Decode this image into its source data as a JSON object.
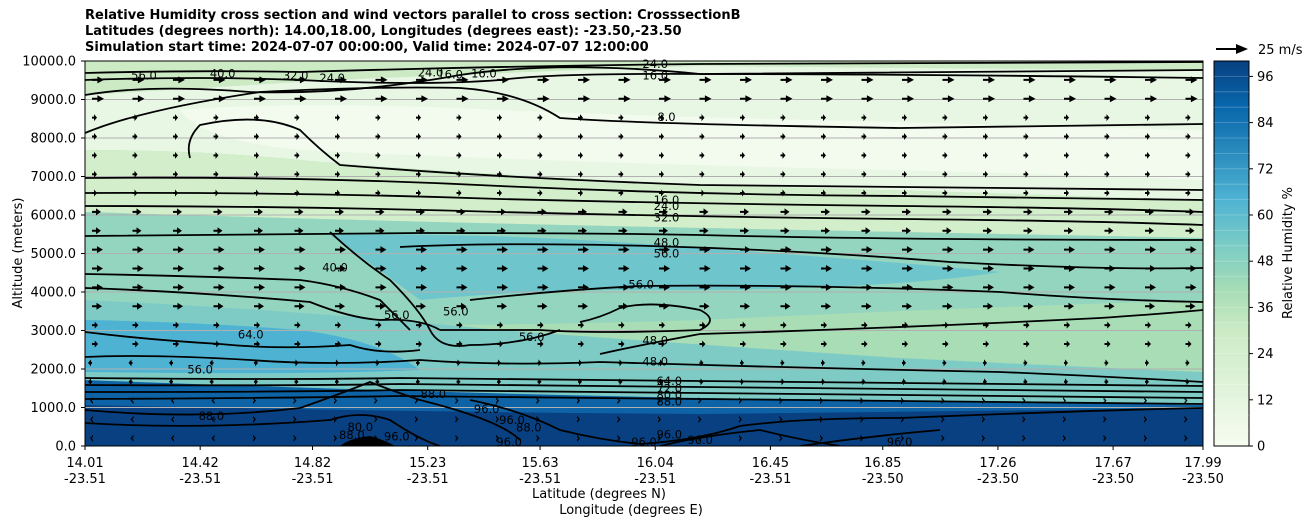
{
  "chart_data": {
    "type": "contour",
    "title_lines": [
      "Relative Humidity cross section and wind vectors parallel to cross section: CrosssectionB",
      "Latitudes (degrees north): 14.00,18.00, Longitudes (degrees east): -23.50,-23.50",
      "Simulation start time: 2024-07-07 00:00:00, Valid time: 2024-07-07 12:00:00"
    ],
    "ylabel": "Altitude (meters)",
    "xlabel_lat": "Latitude (degrees N)",
    "xlabel_lon": "Longitude (degrees E)",
    "ylim": [
      0,
      10000
    ],
    "yticks": [
      "0.0",
      "1000.0",
      "2000.0",
      "3000.0",
      "4000.0",
      "5000.0",
      "6000.0",
      "7000.0",
      "8000.0",
      "9000.0",
      "10000.0"
    ],
    "ytick_values": [
      0,
      1000,
      2000,
      3000,
      4000,
      5000,
      6000,
      7000,
      8000,
      9000,
      10000
    ],
    "xlim": [
      14.01,
      17.99
    ],
    "xtick_lat": [
      "14.01",
      "14.42",
      "14.82",
      "15.23",
      "15.63",
      "16.04",
      "16.45",
      "16.85",
      "17.26",
      "17.67",
      "17.99"
    ],
    "xtick_lon": [
      "-23.51",
      "-23.51",
      "-23.51",
      "-23.51",
      "-23.51",
      "-23.51",
      "-23.51",
      "-23.50",
      "-23.50",
      "-23.50",
      "-23.50"
    ],
    "xtick_values": [
      14.01,
      14.42,
      14.82,
      15.23,
      15.63,
      16.04,
      16.45,
      16.85,
      17.26,
      17.67,
      17.99
    ],
    "colorbar": {
      "label": "Relative Humidity %",
      "ticks": [
        "0",
        "12",
        "24",
        "36",
        "48",
        "60",
        "72",
        "84",
        "96"
      ],
      "tick_values": [
        0,
        12,
        24,
        36,
        48,
        60,
        72,
        84,
        96
      ],
      "min": 0,
      "max": 100,
      "levels": 25,
      "colormap": "GnBu"
    },
    "wind_key_label": "25 m/s",
    "contour_labels": [
      {
        "text": "24.0",
        "lat": 16.04,
        "alt": 9920
      },
      {
        "text": "16.0",
        "lat": 16.04,
        "alt": 9620
      },
      {
        "text": "8.0",
        "lat": 16.08,
        "alt": 8550
      },
      {
        "text": "16.0",
        "lat": 16.08,
        "alt": 6390
      },
      {
        "text": "24.0",
        "lat": 16.08,
        "alt": 6230
      },
      {
        "text": "32.0",
        "lat": 16.08,
        "alt": 5930
      },
      {
        "text": "48.0",
        "lat": 16.08,
        "alt": 5290
      },
      {
        "text": "56.0",
        "lat": 16.08,
        "alt": 5000
      },
      {
        "text": "56.0",
        "lat": 15.99,
        "alt": 4190
      },
      {
        "text": "40.0",
        "lat": 14.9,
        "alt": 4630
      },
      {
        "text": "56.0",
        "lat": 15.12,
        "alt": 3400
      },
      {
        "text": "56.0",
        "lat": 15.33,
        "alt": 3500
      },
      {
        "text": "56.0",
        "lat": 15.6,
        "alt": 2830
      },
      {
        "text": "64.0",
        "lat": 14.6,
        "alt": 2890
      },
      {
        "text": "56.0",
        "lat": 14.42,
        "alt": 1990
      },
      {
        "text": "48.0",
        "lat": 16.04,
        "alt": 2740
      },
      {
        "text": "48.0",
        "lat": 16.04,
        "alt": 2190
      },
      {
        "text": "64.0",
        "lat": 16.09,
        "alt": 1690
      },
      {
        "text": "72.0",
        "lat": 16.09,
        "alt": 1500
      },
      {
        "text": "80.0",
        "lat": 16.09,
        "alt": 1320
      },
      {
        "text": "88.0",
        "lat": 16.09,
        "alt": 1150
      },
      {
        "text": "96.0",
        "lat": 16.09,
        "alt": 300
      },
      {
        "text": "96.0",
        "lat": 16.0,
        "alt": 100
      },
      {
        "text": "96.0",
        "lat": 16.2,
        "alt": 150
      },
      {
        "text": "96.0",
        "lat": 16.91,
        "alt": 100
      },
      {
        "text": "88.0",
        "lat": 14.46,
        "alt": 780
      },
      {
        "text": "96.0",
        "lat": 15.44,
        "alt": 960
      },
      {
        "text": "96.0",
        "lat": 15.53,
        "alt": 670
      },
      {
        "text": "88.0",
        "lat": 15.59,
        "alt": 480
      },
      {
        "text": "96.0",
        "lat": 15.52,
        "alt": 100
      },
      {
        "text": "88.0",
        "lat": 15.25,
        "alt": 1350
      },
      {
        "text": "80.0",
        "lat": 14.99,
        "alt": 500
      },
      {
        "text": "88.0",
        "lat": 14.96,
        "alt": 280
      },
      {
        "text": "96.0",
        "lat": 15.12,
        "alt": 250
      },
      {
        "text": "40.0",
        "lat": 14.5,
        "alt": 9670
      },
      {
        "text": "32.0",
        "lat": 14.76,
        "alt": 9620
      },
      {
        "text": "24.0",
        "lat": 14.89,
        "alt": 9560
      },
      {
        "text": "16.0",
        "lat": 15.31,
        "alt": 9650
      },
      {
        "text": "16.0",
        "lat": 15.43,
        "alt": 9670
      },
      {
        "text": "24.0",
        "lat": 15.24,
        "alt": 9700
      },
      {
        "text": "56.0",
        "lat": 14.22,
        "alt": 9620
      }
    ]
  }
}
